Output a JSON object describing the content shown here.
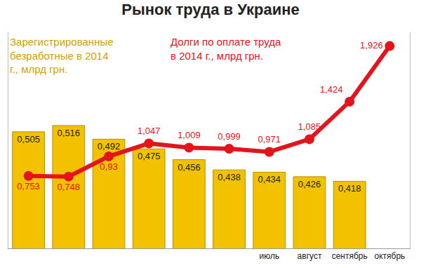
{
  "chart_data": {
    "type": "bar",
    "title": "Рынок труда в Украине",
    "categories": [
      null,
      null,
      null,
      null,
      null,
      null,
      "июль",
      "август",
      "сентябрь",
      "октябрь"
    ],
    "series": [
      {
        "name": "Зарегистрированные безработные в 2014 г., млрд грн.",
        "type": "bar",
        "color": "#f2c200",
        "axis": "y",
        "values": [
          0.505,
          0.516,
          0.492,
          0.475,
          0.456,
          0.438,
          0.434,
          0.426,
          0.418,
          null
        ],
        "value_labels": [
          "0,505",
          "0,516",
          "0,492",
          "0,475",
          "0,456",
          "0,438",
          "0,434",
          "0,426",
          "0,418",
          null
        ]
      },
      {
        "name": "Долги по оплате труда в 2014 г., млрд грн.",
        "type": "line",
        "color": "#e3151b",
        "marker": "circle",
        "axis": "y2",
        "values": [
          0.753,
          0.748,
          0.93,
          1.047,
          1.009,
          0.999,
          0.971,
          1.085,
          1.424,
          1.926
        ],
        "value_labels": [
          "0,753",
          "0,748",
          "0,93",
          "1,047",
          "1,009",
          "0,999",
          "0,971",
          "1,085",
          "1,424",
          "1,926"
        ]
      }
    ],
    "ylim": [
      0.3,
      0.68
    ],
    "yticks": [],
    "y2lim": [
      0.1,
      2.05
    ],
    "y2ticks": [],
    "data_labels": true,
    "tick_labels": "x",
    "grid": false
  }
}
